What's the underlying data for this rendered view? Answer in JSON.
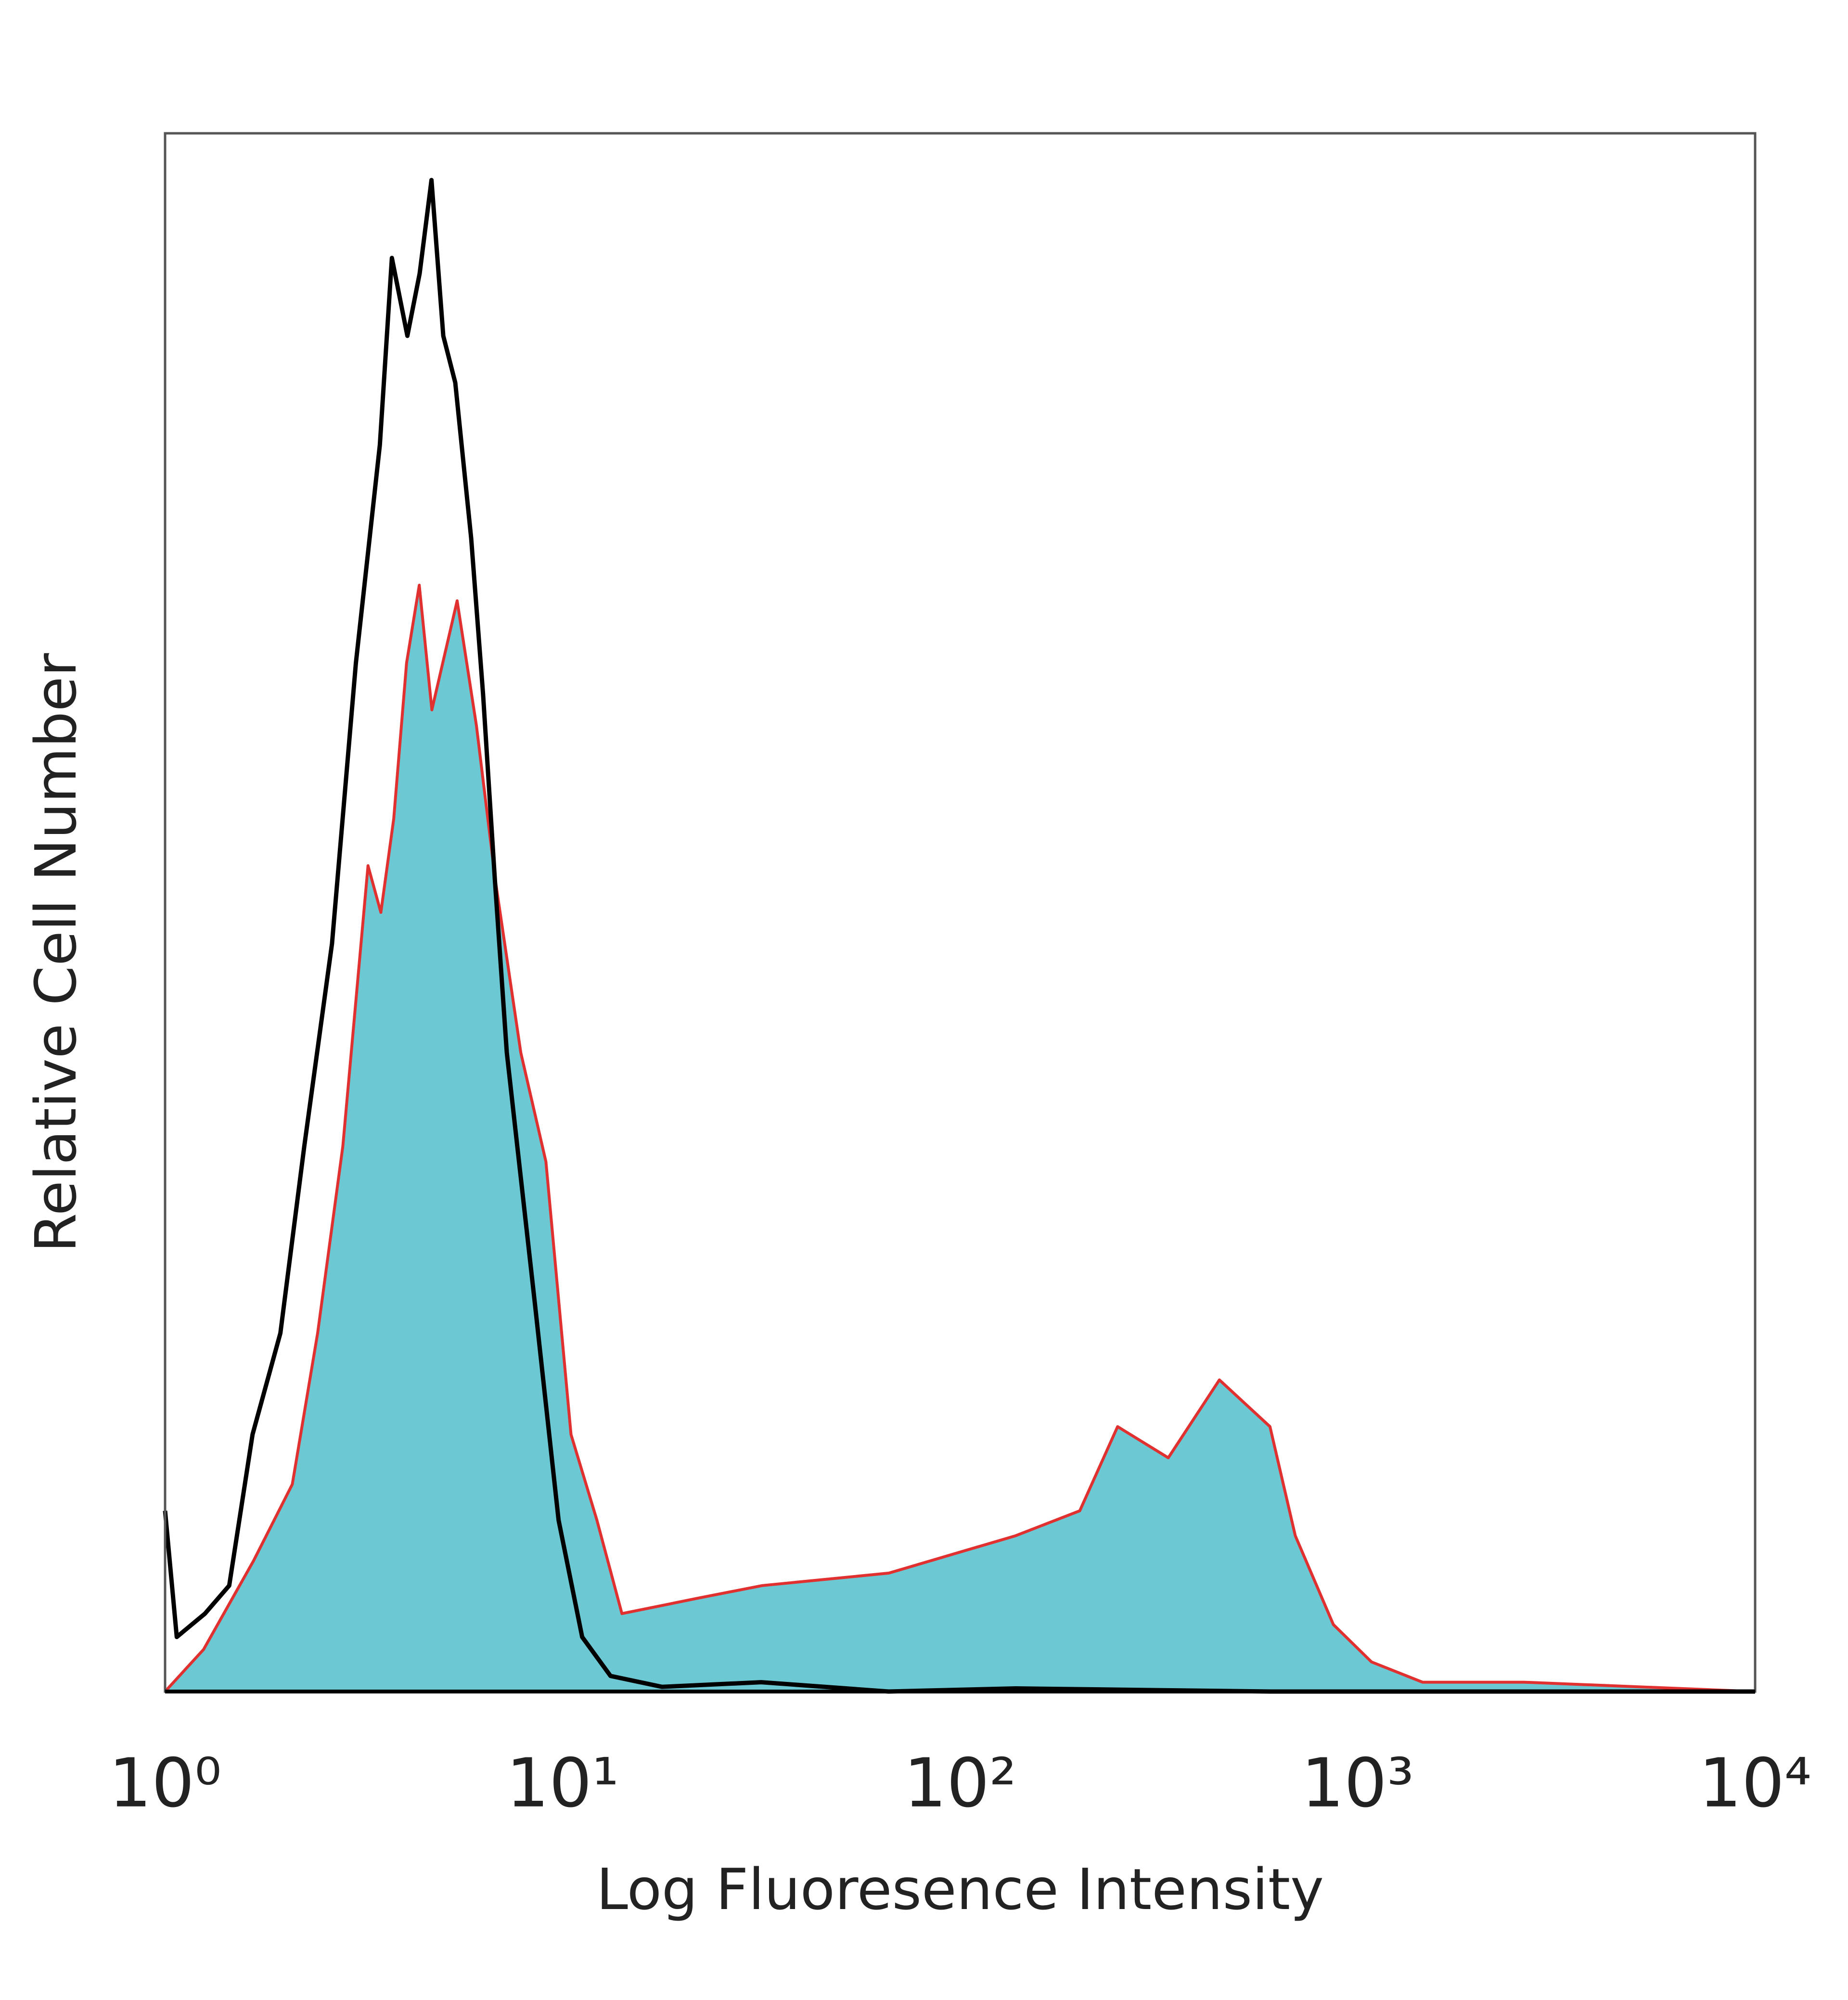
{
  "chart_data": {
    "type": "histogram-overlay",
    "x_label": "Log Fluoresence Intensity",
    "y_label": "Relative Cell Number",
    "xscale": "log",
    "xlim": [
      1,
      10000
    ],
    "ylim": [
      0,
      100
    ],
    "xticks": [
      {
        "value": 1,
        "label": "10⁰"
      },
      {
        "value": 10,
        "label": "10¹"
      },
      {
        "value": 100,
        "label": "10²"
      },
      {
        "value": 1000,
        "label": "10³"
      },
      {
        "value": 10000,
        "label": "10⁴"
      }
    ],
    "series": [
      {
        "color": "#e03030",
        "fill": "#6cc8d2",
        "x": [
          1,
          1.25,
          1.67,
          2.09,
          2.42,
          2.8,
          3.24,
          3.49,
          3.76,
          4.05,
          4.36,
          4.69,
          5.43,
          6.07,
          6.78,
          7.85,
          9.08,
          10.5,
          12.2,
          14.1,
          22,
          31.8,
          66.2,
          138,
          200,
          249,
          334,
          449,
          602,
          697,
          869,
          1084,
          1456,
          2624,
          10000
        ],
        "values": [
          0,
          2.7,
          8.4,
          13.3,
          23,
          35,
          53,
          50,
          56,
          66,
          71,
          63,
          70,
          62,
          52,
          41,
          34,
          16.5,
          11,
          5,
          6,
          6.8,
          7.6,
          10,
          11.6,
          17,
          15,
          20,
          17,
          10,
          4.3,
          1.9,
          0.6,
          0.6,
          0
        ]
      },
      {
        "color": "#000000",
        "x": [
          1,
          1.07,
          1.26,
          1.45,
          1.66,
          1.95,
          2.24,
          2.63,
          3.02,
          3.47,
          3.72,
          4.07,
          4.37,
          4.68,
          5.01,
          5.37,
          5.89,
          6.31,
          6.76,
          7.24,
          8.51,
          9.77,
          11.2,
          13.2,
          17.8,
          31.6,
          66.1,
          138,
          603,
          10000
        ],
        "values": [
          11.6,
          3.5,
          5,
          6.8,
          16.5,
          23,
          35,
          48,
          66,
          80,
          92,
          87,
          91,
          97,
          87,
          84,
          74,
          64,
          52,
          41,
          25,
          11,
          3.5,
          1,
          0.3,
          0.6,
          0,
          0.2,
          0,
          0
        ]
      }
    ]
  }
}
